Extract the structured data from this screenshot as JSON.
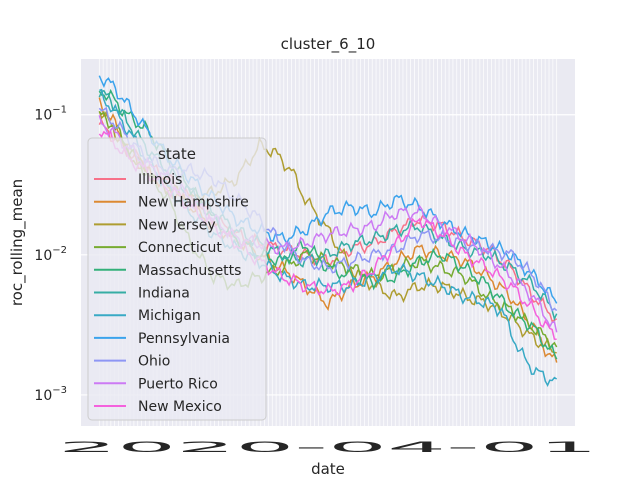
{
  "chart_data": {
    "type": "line",
    "title": "cluster_6_10",
    "xlabel": "date",
    "ylabel": "roc_rolling_mean",
    "yscale": "log",
    "ylim": [
      0.0006,
      0.25
    ],
    "yticks": [
      {
        "value": 0.1,
        "base": "10",
        "exp": "−1"
      },
      {
        "value": 0.01,
        "base": "10",
        "exp": "−2"
      },
      {
        "value": 0.001,
        "base": "10",
        "exp": "−3"
      }
    ],
    "x_tick_text": "2020-04-01",
    "x_tick_count": 120,
    "xlim": [
      -4,
      104
    ],
    "grid": true,
    "legend": {
      "title": "state",
      "placement": "center-left"
    },
    "series": [
      {
        "name": "Illinois",
        "color": "#f77189",
        "points": [
          [
            0,
            0.085
          ],
          [
            3,
            0.07
          ],
          [
            6,
            0.055
          ],
          [
            10,
            0.045
          ],
          [
            15,
            0.035
          ],
          [
            20,
            0.025
          ],
          [
            25,
            0.018
          ],
          [
            30,
            0.014
          ],
          [
            35,
            0.012
          ],
          [
            40,
            0.011
          ],
          [
            45,
            0.01
          ],
          [
            50,
            0.009
          ],
          [
            55,
            0.011
          ],
          [
            60,
            0.012
          ],
          [
            65,
            0.015
          ],
          [
            70,
            0.018
          ],
          [
            75,
            0.016
          ],
          [
            80,
            0.013
          ],
          [
            85,
            0.011
          ],
          [
            90,
            0.008
          ],
          [
            95,
            0.005
          ],
          [
            98,
            0.004
          ],
          [
            100,
            0.0035
          ]
        ]
      },
      {
        "name": "New Hampshire",
        "color": "#dc8932",
        "points": [
          [
            0,
            0.12
          ],
          [
            3,
            0.09
          ],
          [
            6,
            0.06
          ],
          [
            10,
            0.04
          ],
          [
            15,
            0.03
          ],
          [
            20,
            0.022
          ],
          [
            25,
            0.016
          ],
          [
            30,
            0.013
          ],
          [
            35,
            0.01
          ],
          [
            40,
            0.008
          ],
          [
            45,
            0.006
          ],
          [
            50,
            0.0045
          ],
          [
            55,
            0.006
          ],
          [
            60,
            0.007
          ],
          [
            65,
            0.009
          ],
          [
            70,
            0.011
          ],
          [
            75,
            0.01
          ],
          [
            80,
            0.009
          ],
          [
            85,
            0.007
          ],
          [
            90,
            0.005
          ],
          [
            95,
            0.003
          ],
          [
            98,
            0.002
          ],
          [
            100,
            0.0017
          ]
        ]
      },
      {
        "name": "New Jersey",
        "color": "#ae9d31",
        "points": [
          [
            0,
            0.11
          ],
          [
            3,
            0.08
          ],
          [
            6,
            0.055
          ],
          [
            10,
            0.04
          ],
          [
            15,
            0.03
          ],
          [
            20,
            0.025
          ],
          [
            25,
            0.028
          ],
          [
            30,
            0.035
          ],
          [
            35,
            0.06
          ],
          [
            38,
            0.055
          ],
          [
            42,
            0.04
          ],
          [
            45,
            0.025
          ],
          [
            50,
            0.015
          ],
          [
            55,
            0.008
          ],
          [
            60,
            0.006
          ],
          [
            65,
            0.005
          ],
          [
            70,
            0.006
          ],
          [
            75,
            0.006
          ],
          [
            80,
            0.005
          ],
          [
            85,
            0.0045
          ],
          [
            90,
            0.0035
          ],
          [
            95,
            0.0025
          ],
          [
            98,
            0.0022
          ],
          [
            100,
            0.002
          ]
        ]
      },
      {
        "name": "Connecticut",
        "color": "#77ab31",
        "points": [
          [
            0,
            0.1
          ],
          [
            3,
            0.085
          ],
          [
            6,
            0.06
          ],
          [
            10,
            0.04
          ],
          [
            15,
            0.025
          ],
          [
            20,
            0.012
          ],
          [
            25,
            0.007
          ],
          [
            30,
            0.006
          ],
          [
            35,
            0.007
          ],
          [
            40,
            0.008
          ],
          [
            45,
            0.01
          ],
          [
            50,
            0.009
          ],
          [
            55,
            0.008
          ],
          [
            60,
            0.007
          ],
          [
            65,
            0.008
          ],
          [
            70,
            0.009
          ],
          [
            75,
            0.008
          ],
          [
            80,
            0.007
          ],
          [
            85,
            0.005
          ],
          [
            90,
            0.004
          ],
          [
            95,
            0.003
          ],
          [
            98,
            0.0025
          ],
          [
            100,
            0.0022
          ]
        ]
      },
      {
        "name": "Massachusetts",
        "color": "#33b07a",
        "points": [
          [
            0,
            0.15
          ],
          [
            3,
            0.13
          ],
          [
            6,
            0.1
          ],
          [
            10,
            0.08
          ],
          [
            15,
            0.05
          ],
          [
            20,
            0.03
          ],
          [
            25,
            0.018
          ],
          [
            30,
            0.013
          ],
          [
            35,
            0.01
          ],
          [
            40,
            0.009
          ],
          [
            45,
            0.012
          ],
          [
            50,
            0.008
          ],
          [
            55,
            0.007
          ],
          [
            60,
            0.0065
          ],
          [
            65,
            0.007
          ],
          [
            70,
            0.009
          ],
          [
            75,
            0.01
          ],
          [
            80,
            0.008
          ],
          [
            85,
            0.006
          ],
          [
            90,
            0.004
          ],
          [
            95,
            0.003
          ],
          [
            98,
            0.0022
          ],
          [
            100,
            0.0018
          ]
        ]
      },
      {
        "name": "Indiana",
        "color": "#36ada4",
        "points": [
          [
            0,
            0.15
          ],
          [
            3,
            0.12
          ],
          [
            6,
            0.09
          ],
          [
            10,
            0.06
          ],
          [
            15,
            0.04
          ],
          [
            20,
            0.028
          ],
          [
            25,
            0.02
          ],
          [
            30,
            0.015
          ],
          [
            35,
            0.012
          ],
          [
            40,
            0.01
          ],
          [
            45,
            0.009
          ],
          [
            50,
            0.01
          ],
          [
            55,
            0.012
          ],
          [
            60,
            0.013
          ],
          [
            65,
            0.015
          ],
          [
            70,
            0.016
          ],
          [
            75,
            0.013
          ],
          [
            80,
            0.011
          ],
          [
            85,
            0.01
          ],
          [
            90,
            0.008
          ],
          [
            95,
            0.006
          ],
          [
            98,
            0.0045
          ],
          [
            100,
            0.0038
          ]
        ]
      },
      {
        "name": "Michigan",
        "color": "#38a9c5",
        "points": [
          [
            0,
            0.14
          ],
          [
            3,
            0.11
          ],
          [
            6,
            0.08
          ],
          [
            10,
            0.05
          ],
          [
            15,
            0.03
          ],
          [
            20,
            0.02
          ],
          [
            25,
            0.014
          ],
          [
            30,
            0.011
          ],
          [
            35,
            0.009
          ],
          [
            40,
            0.007
          ],
          [
            45,
            0.006
          ],
          [
            50,
            0.006
          ],
          [
            55,
            0.006
          ],
          [
            60,
            0.007
          ],
          [
            65,
            0.008
          ],
          [
            70,
            0.007
          ],
          [
            75,
            0.006
          ],
          [
            80,
            0.005
          ],
          [
            85,
            0.0045
          ],
          [
            88,
            0.004
          ],
          [
            92,
            0.002
          ],
          [
            95,
            0.0015
          ],
          [
            98,
            0.0013
          ],
          [
            100,
            0.0013
          ]
        ]
      },
      {
        "name": "Pennsylvania",
        "color": "#3ba3ec",
        "points": [
          [
            0,
            0.19
          ],
          [
            3,
            0.16
          ],
          [
            6,
            0.12
          ],
          [
            10,
            0.08
          ],
          [
            15,
            0.05
          ],
          [
            20,
            0.035
          ],
          [
            25,
            0.025
          ],
          [
            30,
            0.018
          ],
          [
            35,
            0.015
          ],
          [
            40,
            0.013
          ],
          [
            45,
            0.015
          ],
          [
            50,
            0.02
          ],
          [
            55,
            0.022
          ],
          [
            60,
            0.02
          ],
          [
            65,
            0.025
          ],
          [
            70,
            0.022
          ],
          [
            75,
            0.017
          ],
          [
            80,
            0.014
          ],
          [
            85,
            0.012
          ],
          [
            90,
            0.01
          ],
          [
            95,
            0.007
          ],
          [
            98,
            0.0055
          ],
          [
            100,
            0.0045
          ]
        ]
      },
      {
        "name": "Ohio",
        "color": "#8e96f4",
        "points": [
          [
            0,
            0.11
          ],
          [
            3,
            0.09
          ],
          [
            6,
            0.07
          ],
          [
            10,
            0.05
          ],
          [
            15,
            0.04
          ],
          [
            20,
            0.04
          ],
          [
            25,
            0.035
          ],
          [
            30,
            0.025
          ],
          [
            35,
            0.018
          ],
          [
            40,
            0.012
          ],
          [
            45,
            0.009
          ],
          [
            50,
            0.008
          ],
          [
            55,
            0.009
          ],
          [
            60,
            0.01
          ],
          [
            65,
            0.011
          ],
          [
            70,
            0.014
          ],
          [
            75,
            0.013
          ],
          [
            80,
            0.012
          ],
          [
            85,
            0.011
          ],
          [
            90,
            0.01
          ],
          [
            95,
            0.007
          ],
          [
            98,
            0.005
          ],
          [
            100,
            0.004
          ]
        ]
      },
      {
        "name": "Puerto Rico",
        "color": "#cc7af4",
        "points": [
          [
            0,
            0.09
          ],
          [
            3,
            0.075
          ],
          [
            6,
            0.06
          ],
          [
            10,
            0.045
          ],
          [
            15,
            0.035
          ],
          [
            20,
            0.025
          ],
          [
            25,
            0.018
          ],
          [
            30,
            0.013
          ],
          [
            35,
            0.012
          ],
          [
            40,
            0.011
          ],
          [
            45,
            0.012
          ],
          [
            50,
            0.014
          ],
          [
            55,
            0.015
          ],
          [
            60,
            0.016
          ],
          [
            65,
            0.02
          ],
          [
            70,
            0.02
          ],
          [
            75,
            0.016
          ],
          [
            80,
            0.013
          ],
          [
            85,
            0.01
          ],
          [
            90,
            0.007
          ],
          [
            95,
            0.005
          ],
          [
            98,
            0.0035
          ],
          [
            100,
            0.0028
          ]
        ]
      },
      {
        "name": "New Mexico",
        "color": "#f461dd",
        "points": [
          [
            0,
            0.08
          ],
          [
            3,
            0.065
          ],
          [
            6,
            0.05
          ],
          [
            10,
            0.04
          ],
          [
            15,
            0.03
          ],
          [
            20,
            0.022
          ],
          [
            25,
            0.016
          ],
          [
            30,
            0.012
          ],
          [
            35,
            0.009
          ],
          [
            40,
            0.007
          ],
          [
            45,
            0.006
          ],
          [
            50,
            0.0055
          ],
          [
            55,
            0.006
          ],
          [
            60,
            0.008
          ],
          [
            65,
            0.012
          ],
          [
            70,
            0.018
          ],
          [
            75,
            0.014
          ],
          [
            80,
            0.01
          ],
          [
            85,
            0.008
          ],
          [
            90,
            0.006
          ],
          [
            95,
            0.004
          ],
          [
            98,
            0.003
          ],
          [
            100,
            0.0025
          ]
        ]
      }
    ]
  }
}
